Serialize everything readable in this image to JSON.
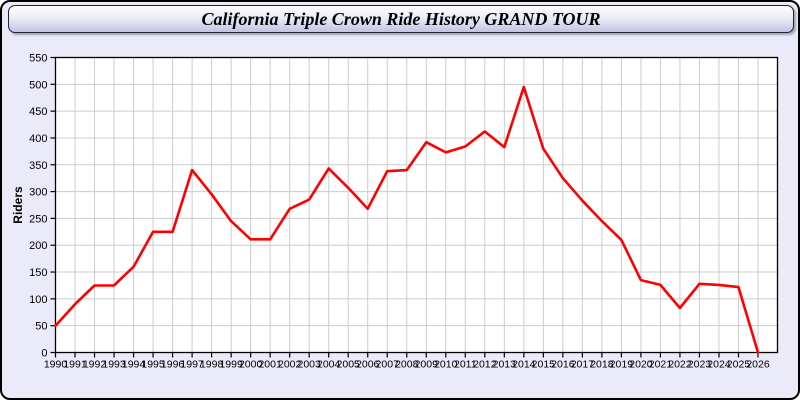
{
  "title_bar": {
    "title": "California Triple Crown Ride History GRAND TOUR"
  },
  "colors": {
    "outer_border": "#000000",
    "panel_background": "#eaeaf8",
    "titlebar_border": "#222233",
    "plot_background": "#ffffff",
    "gridline": "#cccccc",
    "axis": "#000000",
    "line": "#ff0000"
  },
  "chart_data": {
    "type": "line",
    "title": "California Triple Crown Ride History GRAND TOUR",
    "xlabel": "",
    "ylabel": "Riders",
    "x": [
      1990,
      1991,
      1992,
      1993,
      1994,
      1995,
      1996,
      1997,
      1998,
      1999,
      2000,
      2001,
      2002,
      2003,
      2004,
      2005,
      2006,
      2007,
      2008,
      2009,
      2010,
      2011,
      2012,
      2013,
      2014,
      2015,
      2016,
      2017,
      2018,
      2019,
      2020,
      2021,
      2022,
      2023,
      2024,
      2025,
      2026
    ],
    "series": [
      {
        "name": "Riders",
        "color": "#ff0000",
        "values": [
          50,
          90,
          125,
          125,
          160,
          225,
          225,
          340,
          295,
          245,
          211,
          211,
          268,
          285,
          343,
          307,
          268,
          338,
          340,
          392,
          373,
          384,
          412,
          383,
          495,
          380,
          325,
          283,
          245,
          210,
          135,
          126,
          83,
          128,
          126,
          122,
          0
        ]
      }
    ],
    "ylim": [
      0,
      550
    ],
    "ytick_step": 50,
    "grid": true,
    "legend_position": "none"
  }
}
